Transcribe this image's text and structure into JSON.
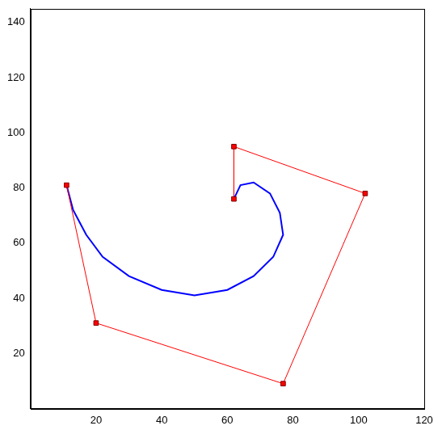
{
  "chart_data": {
    "type": "line",
    "xlim": [
      0,
      120
    ],
    "xticks": [
      20,
      40,
      60,
      80,
      100,
      120
    ],
    "ylim": [
      0,
      145
    ],
    "yticks": [
      20,
      40,
      60,
      80,
      100,
      120,
      140
    ],
    "grid": false,
    "series": [
      {
        "color": "#ff0000",
        "marker": "square",
        "line_style": "solid",
        "x": [
          11,
          20,
          77,
          102,
          62,
          62
        ],
        "values": [
          81,
          31,
          9,
          78,
          95,
          76
        ]
      },
      {
        "color": "#0000ff",
        "marker": "none",
        "line_style": "solid",
        "x": [
          11,
          13,
          17,
          22,
          30,
          40,
          50,
          60,
          68,
          74,
          77,
          76,
          73,
          68,
          64,
          62
        ],
        "values": [
          81,
          72,
          63,
          55,
          48,
          43,
          41,
          43,
          48,
          55,
          63,
          71,
          78,
          82,
          81,
          76
        ]
      }
    ]
  }
}
